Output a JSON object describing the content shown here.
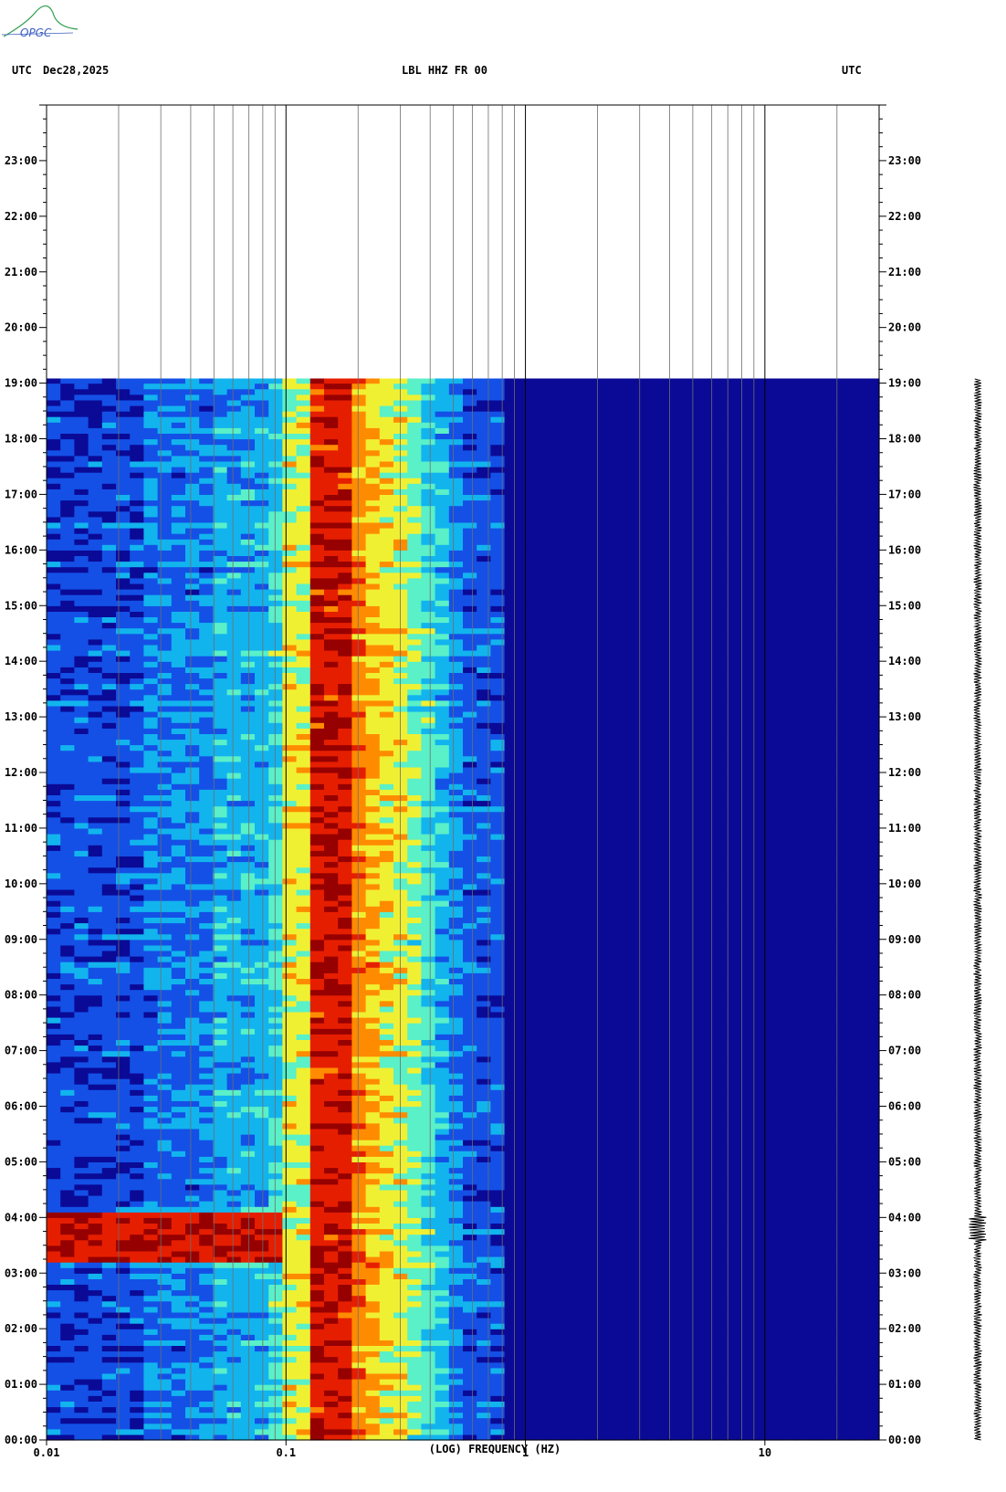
{
  "header": {
    "left_tz": "UTC",
    "date": "Dec28,2025",
    "station": "LBL HHZ FR 00",
    "right_tz": "UTC"
  },
  "logo": {
    "text": "OPGC"
  },
  "chart_data": {
    "type": "heatmap",
    "title": "LBL HHZ FR 00",
    "xlabel": "(LOG) FREQUENCY (HZ)",
    "x_scale": "log",
    "xlim": [
      0.01,
      30
    ],
    "x_ticks": [
      "0.01",
      "0.1",
      "1",
      "10"
    ],
    "x_tick_values": [
      0.01,
      0.1,
      1,
      10
    ],
    "ylim": [
      "00:00",
      "24:00"
    ],
    "y_ticks": [
      "00:00",
      "01:00",
      "02:00",
      "03:00",
      "04:00",
      "05:00",
      "06:00",
      "07:00",
      "08:00",
      "09:00",
      "10:00",
      "11:00",
      "12:00",
      "13:00",
      "14:00",
      "15:00",
      "16:00",
      "17:00",
      "18:00",
      "19:00",
      "20:00",
      "21:00",
      "22:00",
      "23:00"
    ],
    "data_end_time": "19:05",
    "colormap": [
      "#0a0a96",
      "#1450e6",
      "#12b4ee",
      "#5af0c8",
      "#f0f032",
      "#ff8c00",
      "#e61e00",
      "#960000"
    ],
    "energy_band_hz": [
      0.1,
      0.6
    ],
    "peak_band_hz": [
      0.12,
      0.2
    ],
    "transient_event": {
      "start": "03:10",
      "end": "04:05",
      "max_freq_hz": 0.1
    },
    "grid": true
  },
  "colors": {
    "background": "#ffffff",
    "noise_floor": "#0a0a96",
    "peak": "#960000",
    "grid": "#6e6e6e",
    "logo": "#2e9e4e"
  }
}
